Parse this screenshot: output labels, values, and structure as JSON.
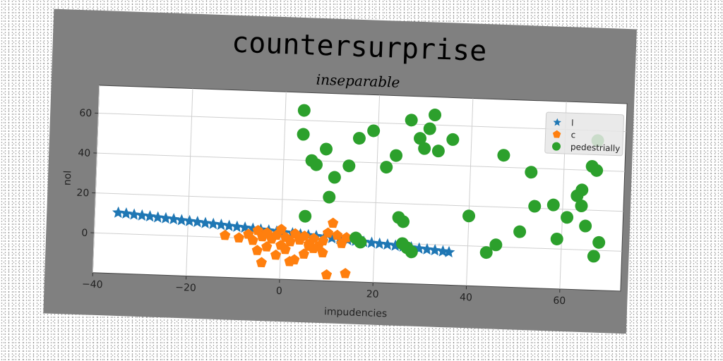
{
  "chart_data": {
    "type": "scatter",
    "title": "countersurprise",
    "subtitle": "inseparable",
    "xlabel": "impudencies",
    "ylabel": "nol",
    "xlim": [
      -40,
      73
    ],
    "ylim": [
      -20,
      74
    ],
    "xticks": [
      -40,
      -20,
      0,
      20,
      40,
      60
    ],
    "yticks": [
      0,
      20,
      40,
      60
    ],
    "grid": true,
    "legend_position": "top-right",
    "series": [
      {
        "name": "l",
        "marker": "star",
        "color": "#1f77b4",
        "points": [
          [
            -35,
            10.5
          ],
          [
            -33.3,
            10.2
          ],
          [
            -31.6,
            9.8
          ],
          [
            -29.9,
            9.5
          ],
          [
            -28.2,
            9.2
          ],
          [
            -26.5,
            8.8
          ],
          [
            -24.8,
            8.5
          ],
          [
            -23.1,
            8.2
          ],
          [
            -21.4,
            7.8
          ],
          [
            -19.7,
            7.5
          ],
          [
            -18.0,
            7.2
          ],
          [
            -16.3,
            6.8
          ],
          [
            -14.6,
            6.5
          ],
          [
            -12.9,
            6.2
          ],
          [
            -11.2,
            5.8
          ],
          [
            -9.5,
            5.5
          ],
          [
            -7.8,
            5.2
          ],
          [
            -6.1,
            4.8
          ],
          [
            -4.4,
            4.5
          ],
          [
            -2.7,
            4.2
          ],
          [
            -1.0,
            3.8
          ],
          [
            0.7,
            3.5
          ],
          [
            2.4,
            3.2
          ],
          [
            4.1,
            2.8
          ],
          [
            5.8,
            2.5
          ],
          [
            7.5,
            2.2
          ],
          [
            9.2,
            1.8
          ],
          [
            10.9,
            1.5
          ],
          [
            12.6,
            1.2
          ],
          [
            14.3,
            0.8
          ],
          [
            16.0,
            0.5
          ],
          [
            17.7,
            0.2
          ],
          [
            19.4,
            -0.2
          ],
          [
            21.1,
            -0.5
          ],
          [
            22.8,
            -0.8
          ],
          [
            24.5,
            -1.2
          ],
          [
            26.2,
            -1.5
          ],
          [
            27.9,
            -1.8
          ],
          [
            29.6,
            -2.2
          ],
          [
            31.3,
            -2.5
          ],
          [
            33.0,
            -2.8
          ],
          [
            34.7,
            -3.2
          ],
          [
            36.0,
            -3.5
          ]
        ]
      },
      {
        "name": "c",
        "marker": "pentagon",
        "color": "#ff7f0e",
        "points": [
          [
            -12,
            1
          ],
          [
            -9,
            0
          ],
          [
            -7,
            2
          ],
          [
            -6,
            -1
          ],
          [
            -5,
            4
          ],
          [
            -4,
            1
          ],
          [
            -3,
            3
          ],
          [
            -2,
            0
          ],
          [
            -1,
            2
          ],
          [
            0,
            5
          ],
          [
            1,
            1
          ],
          [
            2,
            -1
          ],
          [
            3,
            3
          ],
          [
            4,
            0
          ],
          [
            5,
            2
          ],
          [
            6,
            -2
          ],
          [
            7,
            1
          ],
          [
            8,
            -3
          ],
          [
            9,
            0
          ],
          [
            10,
            4
          ],
          [
            11,
            9
          ],
          [
            12,
            3
          ],
          [
            13,
            -1
          ],
          [
            14,
            2
          ],
          [
            -5,
            -6
          ],
          [
            -3,
            -4
          ],
          [
            -1,
            -8
          ],
          [
            1,
            -5
          ],
          [
            3,
            -10
          ],
          [
            5,
            -7
          ],
          [
            7,
            -4
          ],
          [
            9,
            -6
          ],
          [
            -4,
            -12
          ],
          [
            2,
            -11
          ],
          [
            10,
            -17
          ],
          [
            14,
            -16
          ],
          [
            6,
            -3
          ],
          [
            0,
            -3
          ]
        ]
      },
      {
        "name": "pedestrially",
        "marker": "circle",
        "color": "#2ca02c",
        "points": [
          [
            4,
            65
          ],
          [
            4,
            53
          ],
          [
            6,
            40
          ],
          [
            7,
            38
          ],
          [
            9,
            46
          ],
          [
            10,
            22
          ],
          [
            11,
            32
          ],
          [
            14,
            38
          ],
          [
            16,
            52
          ],
          [
            19,
            56
          ],
          [
            22,
            38
          ],
          [
            24,
            44
          ],
          [
            25,
            13
          ],
          [
            26,
            11
          ],
          [
            26,
            0
          ],
          [
            27,
            -2
          ],
          [
            28,
            -4
          ],
          [
            27,
            62
          ],
          [
            29,
            53
          ],
          [
            30,
            48
          ],
          [
            31,
            58
          ],
          [
            32,
            65
          ],
          [
            33,
            47
          ],
          [
            36,
            53
          ],
          [
            5,
            12
          ],
          [
            16,
            2
          ],
          [
            17,
            0
          ],
          [
            40,
            15
          ],
          [
            44,
            -3
          ],
          [
            46,
            1
          ],
          [
            47,
            46
          ],
          [
            51,
            8
          ],
          [
            53,
            38
          ],
          [
            54,
            21
          ],
          [
            58,
            22
          ],
          [
            59,
            5
          ],
          [
            61,
            16
          ],
          [
            63,
            27
          ],
          [
            64,
            30
          ],
          [
            64,
            22
          ],
          [
            65,
            12
          ],
          [
            66,
            42
          ],
          [
            67,
            40
          ],
          [
            67,
            -3
          ],
          [
            68,
            4
          ],
          [
            67,
            55
          ]
        ]
      }
    ]
  }
}
